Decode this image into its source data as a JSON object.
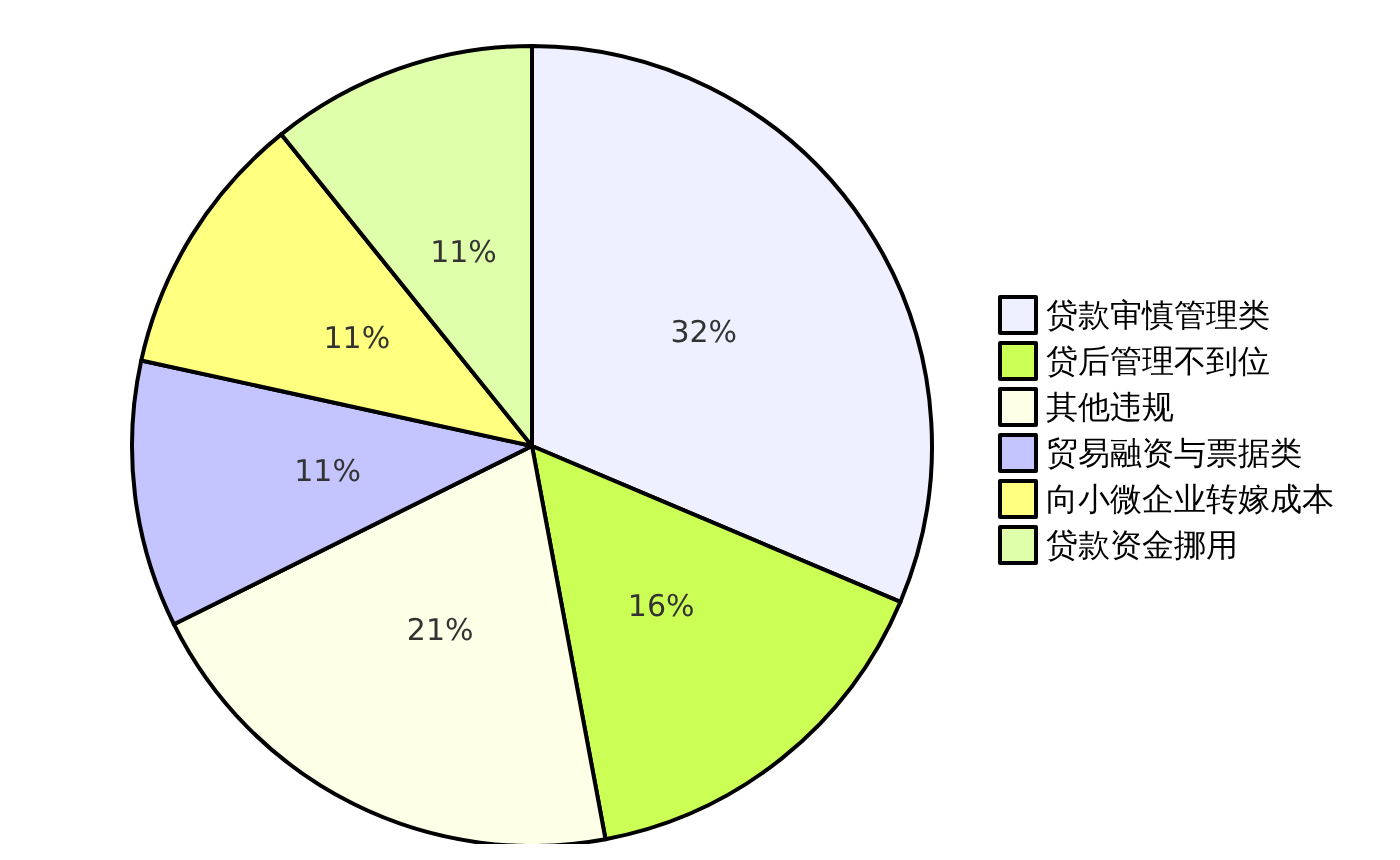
{
  "chart_data": {
    "type": "pie",
    "categories": [
      "贷款审慎管理类",
      "贷后管理不到位",
      "其他违规",
      "贸易融资与票据类",
      "向小微企业转嫁成本",
      "贷款资金挪用"
    ],
    "values": [
      32,
      16,
      21,
      11,
      11,
      11
    ],
    "colors": [
      "#eef0ff",
      "#ccff55",
      "#fdffe6",
      "#c4c4ff",
      "#ffff80",
      "#e0ffaa"
    ],
    "value_labels": [
      "32%",
      "16%",
      "21%",
      "11%",
      "11%",
      "11%"
    ],
    "legend": "right"
  }
}
